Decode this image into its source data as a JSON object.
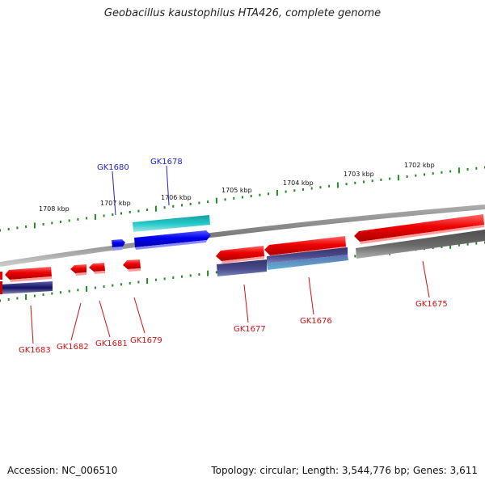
{
  "title": "Geobacillus kaustophilus HTA426, complete genome",
  "footer": {
    "accession": "Accession: NC_006510",
    "topology": "Topology: circular; Length: 3,544,776 bp; Genes: 3,611"
  },
  "kbp_labels": [
    "1708 kbp",
    "1707 kbp",
    "1706 kbp",
    "1705 kbp",
    "1704 kbp",
    "1703 kbp",
    "1702 kbp"
  ],
  "genes_top": [
    "GK1680",
    "GK1678"
  ],
  "genes_bottom": [
    "GK1683",
    "GK1682",
    "GK1681",
    "GK1679",
    "GK1677",
    "GK1676",
    "GK1675"
  ],
  "colors": {
    "gene_forward": "#0000ee",
    "gene_forward_alt": "#22bbbb",
    "gene_reverse": "#ee0000",
    "label_forward": "#2222cc",
    "label_reverse": "#cc1111",
    "backbone": "#808080",
    "ticks": "#228822",
    "cds_blue": "#4a4a8a",
    "cds_grey": "#666666"
  }
}
